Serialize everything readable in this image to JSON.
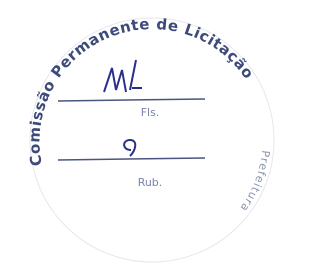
{
  "stamp": {
    "ring_text": "Comissão Permanente de Licitação",
    "side_text": "Prefeitura",
    "field_1_label": "Fls.",
    "field_2_label": "Rub."
  }
}
